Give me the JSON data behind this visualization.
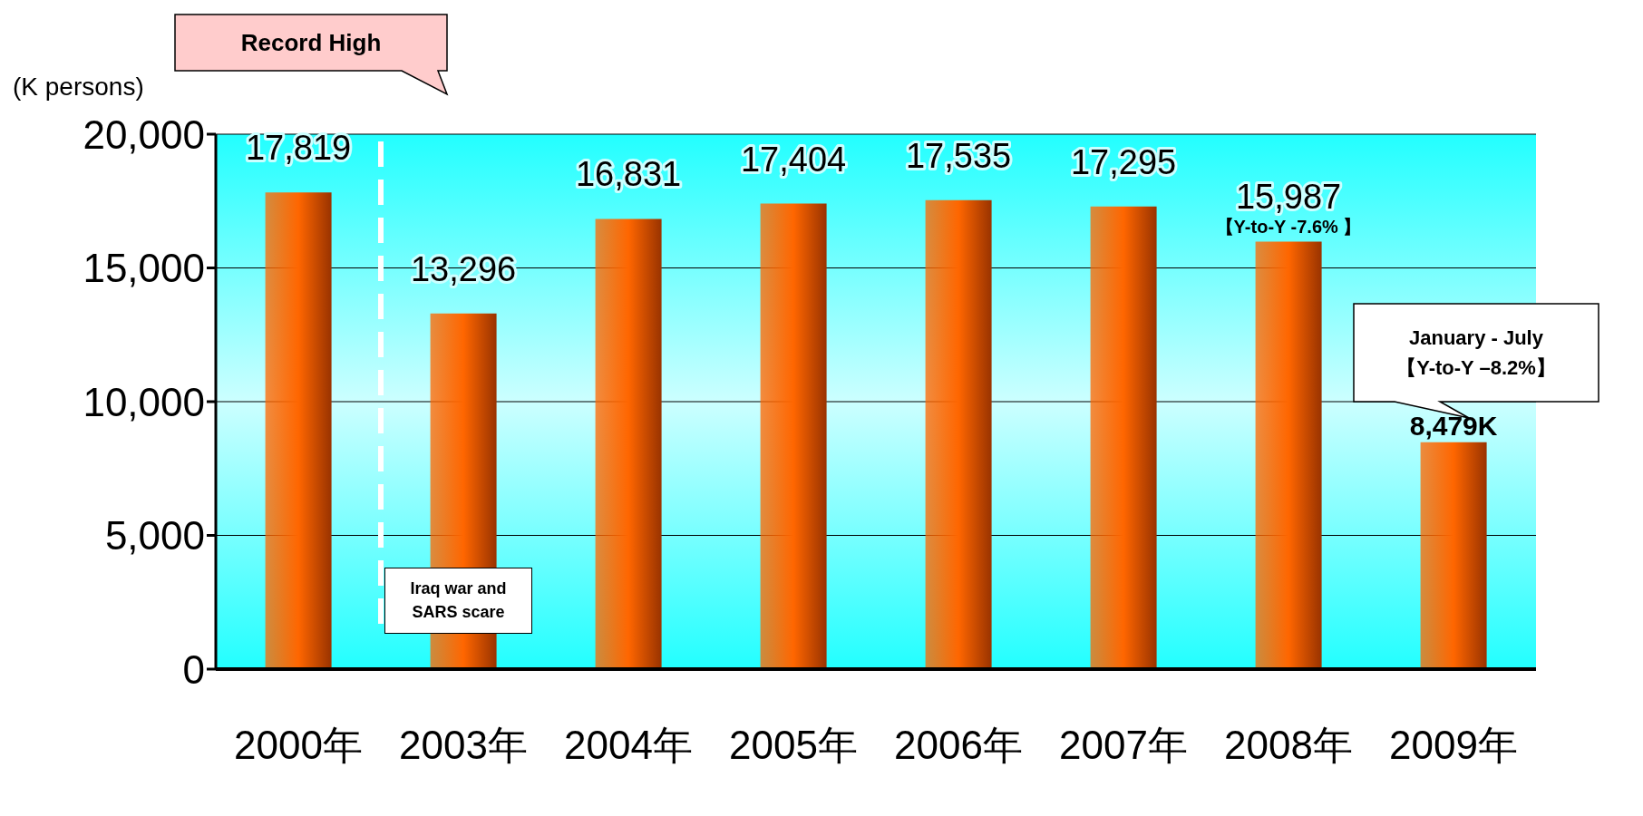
{
  "chart_data": {
    "type": "bar",
    "ylabel": "(K persons)",
    "categories": [
      "2000年",
      "2003年",
      "2004年",
      "2005年",
      "2006年",
      "2007年",
      "2008年",
      "2009年"
    ],
    "values": [
      17819,
      13296,
      16831,
      17404,
      17535,
      17295,
      15987,
      8479
    ],
    "value_labels": [
      "17,819",
      "13,296",
      "16,831",
      "17,404",
      "17,535",
      "17,295",
      "15,987",
      "8,479K"
    ],
    "color": "#ff6600",
    "ylim": [
      0,
      20000
    ],
    "yticks": [
      {
        "value": 0,
        "label": "0"
      },
      {
        "value": 5000,
        "label": "5,000"
      },
      {
        "value": 10000,
        "label": "10,000"
      },
      {
        "value": 15000,
        "label": "15,000"
      },
      {
        "value": 20000,
        "label": "20,000"
      }
    ],
    "grid": "y",
    "ref_lines": [
      {
        "axis": "x",
        "value": "2003年",
        "label": "Iraq war and SARS scare",
        "color": "#ffffff",
        "line_style": "dashed"
      }
    ],
    "annotations": [
      "Record High",
      "【Y-to-Y -7.6% 】",
      "January - July\n【Y-to-Y  –8.2%】"
    ]
  }
}
